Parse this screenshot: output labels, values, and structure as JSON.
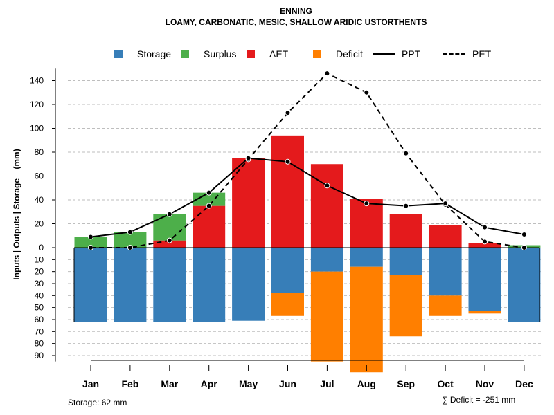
{
  "chart_data": {
    "type": "bar+line",
    "title": "ENNING",
    "subtitle": "LOAMY, CARBONATIC, MESIC, SHALLOW ARIDIC USTORTHENTS",
    "ylabel": "Inputs | Outputs | Storage    (mm)",
    "ylim_top": [
      0,
      150
    ],
    "ylim_bottom": [
      0,
      95
    ],
    "y_ticks_top": [
      "0",
      "20",
      "40",
      "60",
      "80",
      "100",
      "120",
      "140"
    ],
    "y_ticks_bottom": [
      "10",
      "20",
      "30",
      "40",
      "50",
      "60",
      "70",
      "80",
      "90"
    ],
    "categories": [
      "Jan",
      "Feb",
      "Mar",
      "Apr",
      "May",
      "Jun",
      "Jul",
      "Aug",
      "Sep",
      "Oct",
      "Nov",
      "Dec"
    ],
    "legend": [
      {
        "name": "Storage",
        "kind": "box",
        "color": "#377EB8"
      },
      {
        "name": "Surplus",
        "kind": "box",
        "color": "#4DAF4A"
      },
      {
        "name": "AET",
        "kind": "box",
        "color": "#E41A1C"
      },
      {
        "name": "Deficit",
        "kind": "box",
        "color": "#FF7F00"
      },
      {
        "name": "PPT",
        "kind": "line",
        "color": "#000000"
      },
      {
        "name": "PET",
        "kind": "dash",
        "color": "#000000"
      }
    ],
    "aet": [
      0,
      0,
      6,
      35,
      75,
      94,
      70,
      41,
      28,
      19,
      4,
      0
    ],
    "surplus": [
      9,
      13,
      22,
      11,
      0,
      0,
      0,
      0,
      0,
      0,
      0,
      2
    ],
    "storage": [
      62,
      62,
      62,
      62,
      61,
      38,
      20,
      16,
      23,
      40,
      53,
      62
    ],
    "deficit": [
      0,
      0,
      0,
      0,
      0,
      19,
      75,
      88,
      51,
      17,
      2,
      0
    ],
    "ppt": [
      9,
      13,
      28,
      46,
      75,
      72,
      52,
      37,
      35,
      37,
      17,
      11
    ],
    "pet": [
      0,
      0,
      6,
      35,
      74,
      113,
      146,
      130,
      79,
      36,
      5,
      0
    ],
    "colors": {
      "storage": "#377EB8",
      "surplus": "#4DAF4A",
      "aet": "#E41A1C",
      "deficit": "#FF7F00",
      "grid": "#BEBEBE"
    }
  },
  "footer": {
    "storage_note": "Storage: 62 mm",
    "deficit_note": "∑ Deficit = -251 mm"
  }
}
